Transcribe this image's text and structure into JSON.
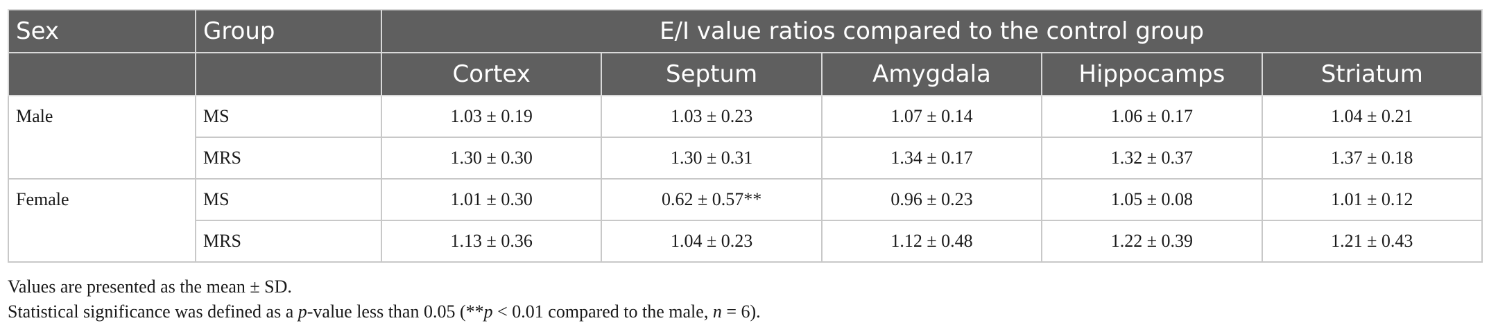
{
  "table": {
    "header": {
      "sex": "Sex",
      "group": "Group",
      "span_title": "E/I value ratios compared to the control group",
      "regions": [
        "Cortex",
        "Septum",
        "Amygdala",
        "Hippocamps",
        "Striatum"
      ]
    },
    "rows": [
      {
        "sex": "Male",
        "groups": [
          {
            "group": "MS",
            "values": [
              "1.03 ± 0.19",
              "1.03 ± 0.23",
              "1.07 ± 0.14",
              "1.06 ± 0.17",
              "1.04 ± 0.21"
            ]
          },
          {
            "group": "MRS",
            "values": [
              "1.30 ± 0.30",
              "1.30 ± 0.31",
              "1.34 ± 0.17",
              "1.32 ± 0.37",
              "1.37 ± 0.18"
            ]
          }
        ]
      },
      {
        "sex": "Female",
        "groups": [
          {
            "group": "MS",
            "values": [
              "1.01 ± 0.30",
              "0.62 ± 0.57**",
              "0.96 ± 0.23",
              "1.05 ± 0.08",
              "1.01 ± 0.12"
            ]
          },
          {
            "group": "MRS",
            "values": [
              "1.13 ± 0.36",
              "1.04 ± 0.23",
              "1.12 ± 0.48",
              "1.22 ± 0.39",
              "1.21 ± 0.43"
            ]
          }
        ]
      }
    ]
  },
  "footnotes": {
    "line1": "Values are presented as the mean ± SD.",
    "line2_a": "Statistical significance was defined as a ",
    "line2_p": "p",
    "line2_b": "-value less than 0.05 (**",
    "line2_p2": "p",
    "line2_c": " < 0.01 compared to the male, ",
    "line2_n": "n",
    "line2_d": " = 6)."
  }
}
